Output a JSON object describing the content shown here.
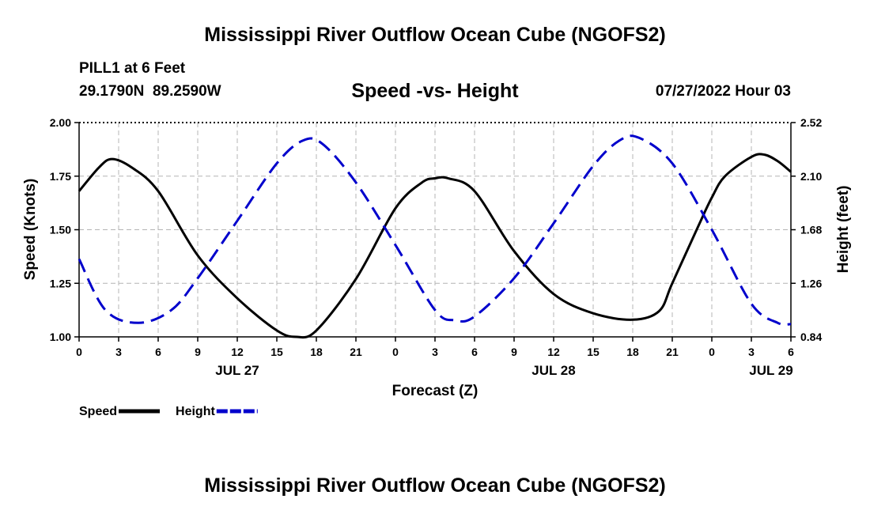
{
  "header": {
    "title": "Mississippi River Outflow Ocean Cube (NGOFS2)",
    "station": "PILL1 at 6 Feet",
    "coords": "29.1790N  89.2590W",
    "date": "07/27/2022 Hour 03",
    "bottom_title": "Mississippi River Outflow Ocean Cube (NGOFS2)"
  },
  "chart_data": {
    "type": "line",
    "title": "Speed -vs- Height",
    "xlabel": "Forecast (Z)",
    "ylabel_left": "Speed (Knots)",
    "ylabel_right": "Height (feet)",
    "x_range_hours": [
      0,
      54
    ],
    "x_ticks": [
      {
        "h": 0,
        "label": "0"
      },
      {
        "h": 3,
        "label": "3"
      },
      {
        "h": 6,
        "label": "6"
      },
      {
        "h": 9,
        "label": "9"
      },
      {
        "h": 12,
        "label": "12"
      },
      {
        "h": 15,
        "label": "15"
      },
      {
        "h": 18,
        "label": "18"
      },
      {
        "h": 21,
        "label": "21"
      },
      {
        "h": 24,
        "label": "0"
      },
      {
        "h": 27,
        "label": "3"
      },
      {
        "h": 30,
        "label": "6"
      },
      {
        "h": 33,
        "label": "9"
      },
      {
        "h": 36,
        "label": "12"
      },
      {
        "h": 39,
        "label": "15"
      },
      {
        "h": 42,
        "label": "18"
      },
      {
        "h": 45,
        "label": "21"
      },
      {
        "h": 48,
        "label": "0"
      },
      {
        "h": 51,
        "label": "3"
      },
      {
        "h": 54,
        "label": "6"
      }
    ],
    "date_labels": [
      {
        "h": 12,
        "label": "JUL 27"
      },
      {
        "h": 36,
        "label": "JUL 28"
      },
      {
        "h": 52.5,
        "label": "JUL 29"
      }
    ],
    "ylim_left": [
      1.0,
      2.0
    ],
    "yticks_left": [
      "1.00",
      "1.25",
      "1.50",
      "1.75",
      "2.00"
    ],
    "ylim_right": [
      0.84,
      2.52
    ],
    "yticks_right": [
      "0.84",
      "1.26",
      "1.68",
      "2.10",
      "2.52"
    ],
    "grid": true,
    "series": [
      {
        "name": "Speed",
        "axis": "left",
        "color": "#000000",
        "style": "solid",
        "x": [
          0,
          1.5,
          2.5,
          4,
          6,
          9,
          12,
          15,
          16.5,
          18,
          21,
          24,
          26,
          27,
          28,
          30,
          33,
          36,
          39,
          42,
          44,
          45,
          47,
          48,
          49,
          51,
          52,
          53,
          54
        ],
        "values": [
          1.68,
          1.79,
          1.83,
          1.79,
          1.68,
          1.38,
          1.18,
          1.03,
          1.0,
          1.03,
          1.27,
          1.6,
          1.72,
          1.74,
          1.74,
          1.68,
          1.4,
          1.2,
          1.11,
          1.08,
          1.12,
          1.25,
          1.52,
          1.65,
          1.75,
          1.84,
          1.85,
          1.82,
          1.77
        ]
      },
      {
        "name": "Height",
        "axis": "right",
        "color": "#0000cc",
        "style": "dashed",
        "x": [
          0,
          2,
          4.5,
          7,
          9,
          12,
          15,
          17,
          18.5,
          21,
          24,
          27,
          28.5,
          30,
          33,
          36,
          39,
          41,
          42.5,
          45,
          48,
          51,
          53,
          54
        ],
        "values": [
          1.45,
          1.05,
          0.95,
          1.05,
          1.3,
          1.75,
          2.2,
          2.38,
          2.35,
          2.05,
          1.56,
          1.05,
          0.97,
          1.0,
          1.3,
          1.73,
          2.18,
          2.38,
          2.4,
          2.2,
          1.68,
          1.1,
          0.95,
          0.94
        ]
      }
    ],
    "legend": [
      {
        "label": "Speed",
        "color": "#000000"
      },
      {
        "label": "Height",
        "color": "#0000cc"
      }
    ],
    "legend_position": "bottom-left"
  }
}
